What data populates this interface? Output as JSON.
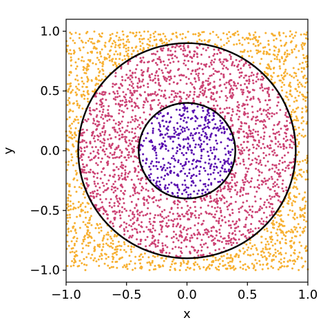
{
  "chart_data": {
    "type": "scatter",
    "title": "",
    "xlabel": "x",
    "ylabel": "y",
    "xlim": [
      -1.0,
      1.0
    ],
    "ylim": [
      -1.1,
      1.1
    ],
    "x_ticks": [
      -1.0,
      -0.5,
      0.0,
      0.5,
      1.0
    ],
    "y_ticks": [
      -1.0,
      -0.5,
      0.0,
      0.5,
      1.0
    ],
    "x_tick_labels": [
      "−1.0",
      "−0.5",
      "0.0",
      "0.5",
      "1.0"
    ],
    "y_tick_labels": [
      "−1.0",
      "−0.5",
      "0.0",
      "0.5",
      "1.0"
    ],
    "grid": false,
    "legend": false,
    "point_sampling": "uniform random points in the square [-1, 1] x [-1, 1], colored by radius",
    "region_counts_estimate": {
      "inner_disc": 500,
      "annulus": 2000,
      "outside": 1500
    },
    "regions": [
      {
        "region": "inner_disc",
        "r_min": 0.0,
        "r_max": 0.4,
        "color": "#5b0fb0"
      },
      {
        "region": "annulus",
        "r_min": 0.4,
        "r_max": 0.9,
        "color": "#cc4374"
      },
      {
        "region": "outside",
        "r_min": 0.9,
        "r_max": null,
        "color": "#f7b032"
      }
    ],
    "circles": [
      {
        "center": [
          0.0,
          0.0
        ],
        "radius": 0.4,
        "color": "#000000"
      },
      {
        "center": [
          0.0,
          0.0
        ],
        "radius": 0.9,
        "color": "#000000"
      }
    ]
  }
}
